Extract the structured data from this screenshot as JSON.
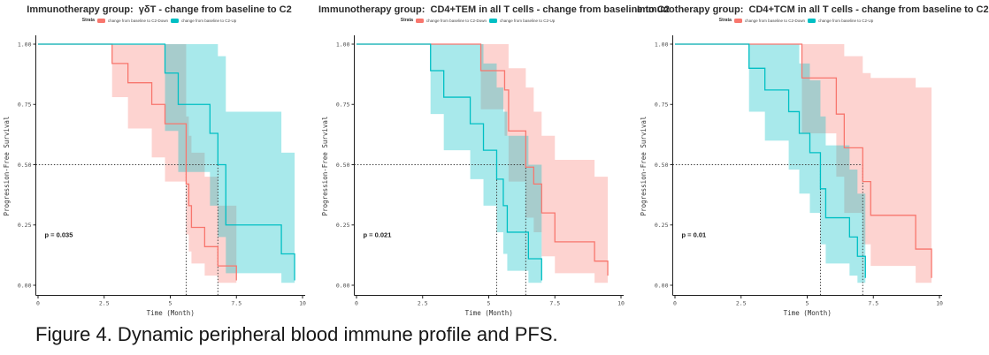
{
  "figure": {
    "caption": "Figure 4. Dynamic peripheral blood immune profile and PFS."
  },
  "colors": {
    "down_line": "#F8766D",
    "up_line": "#00BFC4",
    "down_fill": "rgba(248,118,109,0.32)",
    "up_fill": "rgba(0,191,196,0.34)",
    "dashed": "#3a3a3a",
    "axis": "#1f1f1f",
    "tick_text": "#4d4d4d"
  },
  "chart_data": [
    {
      "type": "line",
      "subtype": "kaplan-meier",
      "title": "Immunotherapy group:  γδT - change from baseline to C2",
      "xlabel": "Time (Month)",
      "ylabel": "Progression-Free Survival",
      "p_label": "p = 0.035",
      "legend": {
        "strata": "Strata",
        "down": "change from baseline to C2-Down",
        "up": "change from baseline to C2-Up"
      },
      "xlim": [
        0,
        10.3
      ],
      "ylim": [
        0,
        1
      ],
      "xticks": [
        0,
        2.5,
        5,
        7.5,
        10
      ],
      "xtick_labels": [
        "0",
        "2.5",
        "5",
        "7.5",
        "10"
      ],
      "yticks": [
        0,
        0.25,
        0.5,
        0.75,
        1
      ],
      "ytick_labels": [
        "0.00",
        "0.25",
        "0.50",
        "0.75",
        "1.00"
      ],
      "median_survival_marker": 0.5,
      "medians": {
        "down": 5.6,
        "up": 6.8
      },
      "series": [
        {
          "name": "change from baseline to C2-Down",
          "color_key": "down",
          "times": [
            0,
            2.8,
            3.4,
            4.3,
            4.8,
            5.6,
            5.7,
            5.8,
            6.3,
            6.8,
            7.5
          ],
          "surv": [
            1,
            0.92,
            0.84,
            0.75,
            0.67,
            0.42,
            0.33,
            0.24,
            0.16,
            0.08,
            0.02
          ],
          "lower": [
            1,
            0.78,
            0.65,
            0.53,
            0.43,
            0.21,
            0.14,
            0.09,
            0.04,
            0.01,
            0
          ],
          "upper": [
            1,
            1,
            1,
            1,
            1,
            0.7,
            0.62,
            0.55,
            0.45,
            0.33,
            0.2
          ]
        },
        {
          "name": "change from baseline to C2-Up",
          "color_key": "up",
          "times": [
            0,
            4.8,
            5.3,
            6.5,
            6.8,
            7.1,
            9.2,
            9.7
          ],
          "surv": [
            1,
            0.88,
            0.75,
            0.63,
            0.5,
            0.25,
            0.13,
            0.02
          ],
          "lower": [
            1,
            0.64,
            0.47,
            0.33,
            0.2,
            0.05,
            0.01,
            0
          ],
          "upper": [
            1,
            1,
            1,
            1,
            0.95,
            0.72,
            0.55,
            0.42
          ]
        }
      ]
    },
    {
      "type": "line",
      "subtype": "kaplan-meier",
      "title": "Immunotherapy group:  CD4+TEM in all T cells - change from baseline to C2",
      "xlabel": "Time (Month)",
      "ylabel": "Progression-Free Survival",
      "p_label": "p = 0.021",
      "legend": {
        "strata": "Strata",
        "down": "change from baseline to C2-Down",
        "up": "change from baseline to C2-Up"
      },
      "xlim": [
        0,
        10.3
      ],
      "ylim": [
        0,
        1
      ],
      "xticks": [
        0,
        2.5,
        5,
        7.5,
        10
      ],
      "xtick_labels": [
        "0",
        "2.5",
        "5",
        "7.5",
        "10"
      ],
      "yticks": [
        0,
        0.25,
        0.5,
        0.75,
        1
      ],
      "ytick_labels": [
        "0.00",
        "0.25",
        "0.50",
        "0.75",
        "1.00"
      ],
      "median_survival_marker": 0.5,
      "medians": {
        "down": 6.4,
        "up": 5.3
      },
      "series": [
        {
          "name": "change from baseline to C2-Down",
          "color_key": "down",
          "times": [
            0,
            4.7,
            5.6,
            5.75,
            6.4,
            6.7,
            7.0,
            7.5,
            9.0,
            9.5
          ],
          "surv": [
            1,
            0.89,
            0.81,
            0.64,
            0.49,
            0.42,
            0.3,
            0.18,
            0.1,
            0.04
          ],
          "lower": [
            1,
            0.73,
            0.62,
            0.43,
            0.28,
            0.22,
            0.12,
            0.05,
            0.01,
            0
          ],
          "upper": [
            1,
            1,
            1,
            0.9,
            0.82,
            0.72,
            0.62,
            0.52,
            0.45,
            0.35
          ]
        },
        {
          "name": "change from baseline to C2-Up",
          "color_key": "up",
          "times": [
            0,
            2.8,
            3.3,
            4.3,
            4.8,
            5.3,
            5.55,
            5.7,
            6.5,
            7.0
          ],
          "surv": [
            1,
            0.89,
            0.78,
            0.67,
            0.56,
            0.44,
            0.33,
            0.22,
            0.11,
            0.02
          ],
          "lower": [
            1,
            0.71,
            0.56,
            0.44,
            0.33,
            0.22,
            0.13,
            0.06,
            0.01,
            0
          ],
          "upper": [
            1,
            1,
            1,
            1,
            0.92,
            0.82,
            0.72,
            0.62,
            0.5,
            0.35
          ]
        }
      ]
    },
    {
      "type": "line",
      "subtype": "kaplan-meier",
      "title": "Immunotherapy group:  CD4+TCM in all T cells - change from baseline to C2",
      "xlabel": "Time (Month)",
      "ylabel": "Progression-Free Survival",
      "p_label": "p = 0.01",
      "legend": {
        "strata": "Strata",
        "down": "change from baseline to C2-Down",
        "up": "change from baseline to C2-Up"
      },
      "xlim": [
        0,
        10.3
      ],
      "ylim": [
        0,
        1
      ],
      "xticks": [
        0,
        2.5,
        5,
        7.5,
        10
      ],
      "xtick_labels": [
        "0",
        "2.5",
        "5",
        "7.5",
        "10"
      ],
      "yticks": [
        0,
        0.25,
        0.5,
        0.75,
        1
      ],
      "ytick_labels": [
        "0.00",
        "0.25",
        "0.50",
        "0.75",
        "1.00"
      ],
      "median_survival_marker": 0.5,
      "medians": {
        "down": 7.1,
        "up": 5.5
      },
      "series": [
        {
          "name": "change from baseline to C2-Down",
          "color_key": "down",
          "times": [
            0,
            4.8,
            6.1,
            6.4,
            7.1,
            7.4,
            9.1,
            9.7
          ],
          "surv": [
            1,
            0.86,
            0.71,
            0.57,
            0.43,
            0.29,
            0.15,
            0.03
          ],
          "lower": [
            1,
            0.63,
            0.45,
            0.3,
            0.17,
            0.08,
            0.01,
            0
          ],
          "upper": [
            1,
            1,
            1,
            0.95,
            0.88,
            0.86,
            0.82,
            0.6
          ]
        },
        {
          "name": "change from baseline to C2-Up",
          "color_key": "up",
          "times": [
            0,
            2.8,
            3.4,
            4.3,
            4.7,
            5.1,
            5.5,
            5.7,
            6.6,
            6.9,
            7.2
          ],
          "surv": [
            1,
            0.9,
            0.81,
            0.72,
            0.63,
            0.55,
            0.4,
            0.28,
            0.2,
            0.12,
            0.03
          ],
          "lower": [
            1,
            0.72,
            0.6,
            0.48,
            0.38,
            0.3,
            0.17,
            0.09,
            0.04,
            0.01,
            0
          ],
          "upper": [
            1,
            1,
            1,
            1,
            0.92,
            0.85,
            0.7,
            0.58,
            0.48,
            0.38,
            0.25
          ]
        }
      ]
    }
  ]
}
